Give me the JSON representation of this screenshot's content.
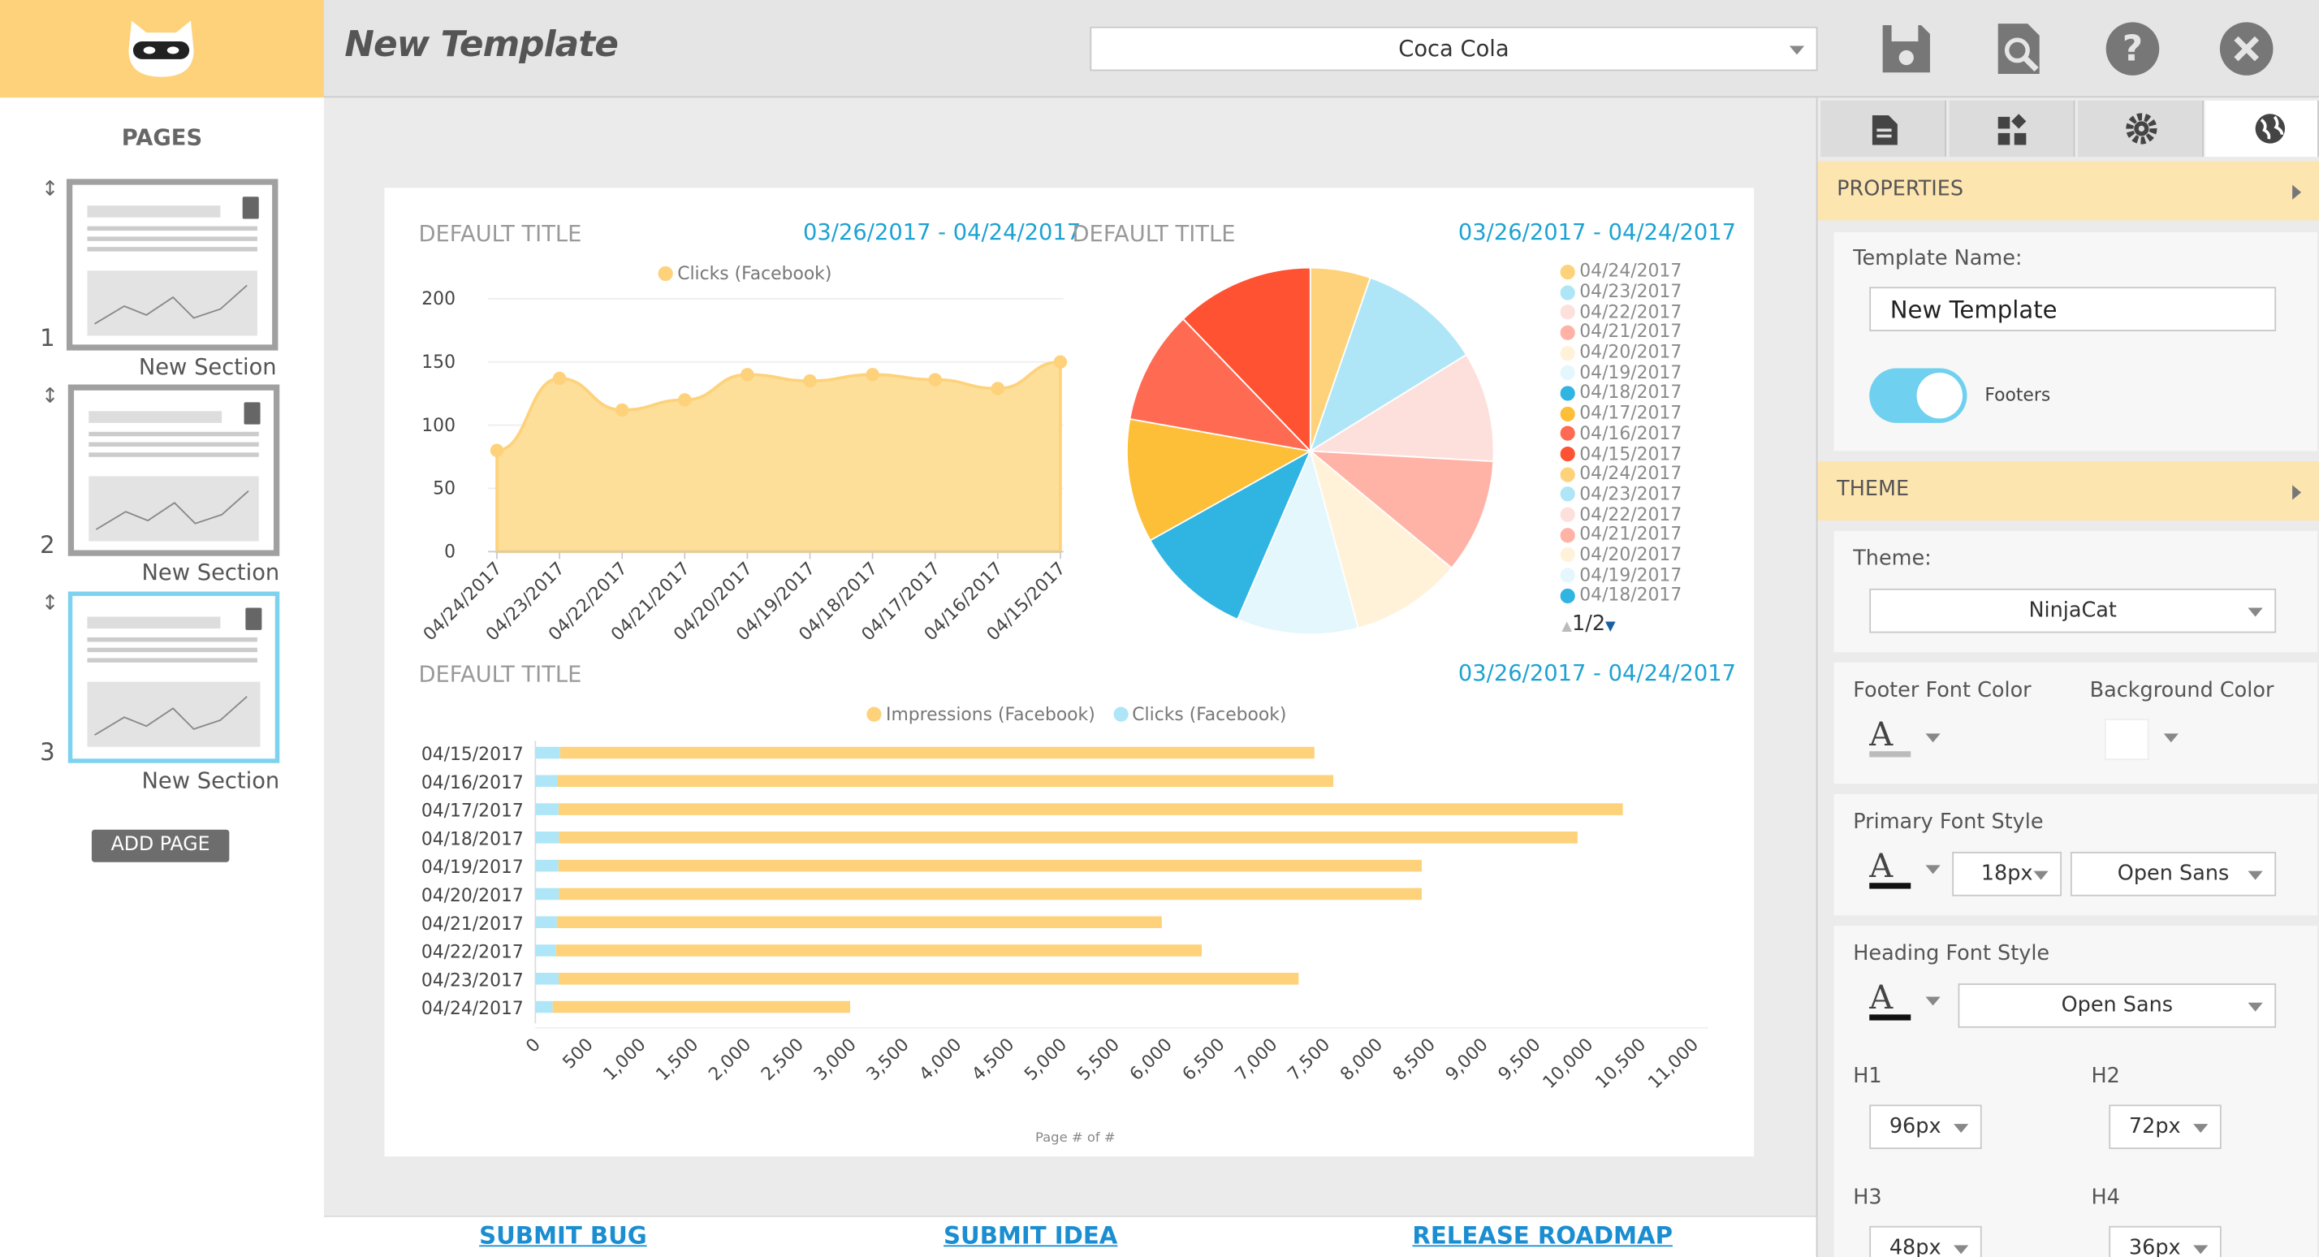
{
  "header": {
    "title": "New Template",
    "client": "Coca Cola"
  },
  "icons": {
    "logo": "ninjacat-logo-icon",
    "save": "save-icon",
    "preview": "preview-search-icon",
    "help": "help-icon",
    "close": "close-icon"
  },
  "pages": {
    "heading": "PAGES",
    "items": [
      {
        "num": "1",
        "label": "New Section"
      },
      {
        "num": "2",
        "label": "New Section"
      },
      {
        "num": "3",
        "label": "New Section"
      }
    ],
    "add_label": "ADD PAGE"
  },
  "widgets": {
    "line": {
      "title": "DEFAULT TITLE",
      "date": "03/26/2017 - 04/24/2017"
    },
    "pie": {
      "title": "DEFAULT TITLE",
      "date": "03/26/2017 - 04/24/2017",
      "pager": "1/2"
    },
    "bar": {
      "title": "DEFAULT TITLE",
      "date": "03/26/2017 - 04/24/2017"
    }
  },
  "footer_text": "Page # of #",
  "links": {
    "bug": "SUBMIT BUG",
    "idea": "SUBMIT IDEA",
    "roadmap": "RELEASE ROADMAP"
  },
  "panel": {
    "tabs": [
      "document-icon",
      "widgets-icon",
      "gear-icon",
      "globe-icon"
    ],
    "properties": "PROPERTIES",
    "template_name_label": "Template Name:",
    "template_name": "New Template",
    "footers_label": "Footers",
    "theme_header": "THEME",
    "theme_label": "Theme:",
    "theme": "NinjaCat",
    "footer_font_color": "Footer Font Color",
    "background_color": "Background Color",
    "primary_font_style": "Primary Font Style",
    "primary_size": "18px",
    "primary_font": "Open Sans",
    "heading_font_style": "Heading Font Style",
    "heading_font": "Open Sans",
    "h1_label": "H1",
    "h1": "96px",
    "h2_label": "H2",
    "h2": "72px",
    "h3_label": "H3",
    "h3": "48px",
    "h4_label": "H4",
    "h4": "36px"
  },
  "colors": {
    "accent": "#fdd27a",
    "link": "#1a8ed0",
    "date": "#1ea2d2",
    "toggle": "#6fd0f0"
  },
  "chart_data": [
    {
      "type": "area",
      "title": "DEFAULT TITLE",
      "legend": [
        "Clicks (Facebook)"
      ],
      "categories": [
        "04/24/2017",
        "04/23/2017",
        "04/22/2017",
        "04/21/2017",
        "04/20/2017",
        "04/19/2017",
        "04/18/2017",
        "04/17/2017",
        "04/16/2017",
        "04/15/2017"
      ],
      "series": [
        {
          "name": "Clicks (Facebook)",
          "values": [
            80,
            137,
            112,
            120,
            140,
            135,
            140,
            136,
            129,
            150
          ],
          "color": "#fdd27a"
        }
      ],
      "ylim": [
        0,
        200
      ],
      "yticks": [
        "0",
        "50",
        "100",
        "150",
        "200"
      ]
    },
    {
      "type": "pie",
      "title": "DEFAULT TITLE",
      "legend_position": "right",
      "slices": [
        {
          "label": "04/24/2017",
          "value": 5.3,
          "color": "#fdd27a"
        },
        {
          "label": "04/23/2017",
          "value": 10.9,
          "color": "#aee6f8"
        },
        {
          "label": "04/22/2017",
          "value": 9.7,
          "color": "#fde0dc"
        },
        {
          "label": "04/21/2017",
          "value": 10.1,
          "color": "#ffb3a6"
        },
        {
          "label": "04/20/2017",
          "value": 9.8,
          "color": "#fff2d9"
        },
        {
          "label": "04/19/2017",
          "value": 10.7,
          "color": "#e3f7fd"
        },
        {
          "label": "04/18/2017",
          "value": 10.4,
          "color": "#30b4e2"
        },
        {
          "label": "04/17/2017",
          "value": 10.9,
          "color": "#fdbf38"
        },
        {
          "label": "04/16/2017",
          "value": 10.0,
          "color": "#ff6b52"
        },
        {
          "label": "04/15/2017",
          "value": 12.2,
          "color": "#ff5233"
        }
      ],
      "legend": [
        {
          "label": "04/24/2017",
          "color": "#fdd27a"
        },
        {
          "label": "04/23/2017",
          "color": "#aee6f8"
        },
        {
          "label": "04/22/2017",
          "color": "#fde0dc"
        },
        {
          "label": "04/21/2017",
          "color": "#ffb3a6"
        },
        {
          "label": "04/20/2017",
          "color": "#fff2d9"
        },
        {
          "label": "04/19/2017",
          "color": "#e3f7fd"
        },
        {
          "label": "04/18/2017",
          "color": "#30b4e2"
        },
        {
          "label": "04/17/2017",
          "color": "#fdbf38"
        },
        {
          "label": "04/16/2017",
          "color": "#ff6b52"
        },
        {
          "label": "04/15/2017",
          "color": "#ff5233"
        },
        {
          "label": "04/24/2017",
          "color": "#fdd27a"
        },
        {
          "label": "04/23/2017",
          "color": "#aee6f8"
        },
        {
          "label": "04/22/2017",
          "color": "#fde0dc"
        },
        {
          "label": "04/21/2017",
          "color": "#ffb3a6"
        },
        {
          "label": "04/20/2017",
          "color": "#fff2d9"
        },
        {
          "label": "04/19/2017",
          "color": "#e3f7fd"
        },
        {
          "label": "04/18/2017",
          "color": "#30b4e2"
        }
      ]
    },
    {
      "type": "bar",
      "orientation": "horizontal",
      "title": "DEFAULT TITLE",
      "legend": [
        "Impressions (Facebook)",
        "Clicks (Facebook)"
      ],
      "categories": [
        "04/15/2017",
        "04/16/2017",
        "04/17/2017",
        "04/18/2017",
        "04/19/2017",
        "04/20/2017",
        "04/21/2017",
        "04/22/2017",
        "04/23/2017",
        "04/24/2017"
      ],
      "series": [
        {
          "name": "Impressions (Facebook)",
          "values": [
            7400,
            7580,
            10330,
            9900,
            8420,
            8420,
            5950,
            6330,
            7250,
            2990
          ],
          "color": "#fdd27a"
        },
        {
          "name": "Clicks (Facebook)",
          "values": [
            150,
            129,
            136,
            140,
            135,
            140,
            120,
            112,
            137,
            80
          ],
          "color": "#aee6f8"
        }
      ],
      "xlim": [
        0,
        11000
      ],
      "xticks": [
        "0",
        "500",
        "1,000",
        "1,500",
        "2,000",
        "2,500",
        "3,000",
        "3,500",
        "4,000",
        "4,500",
        "5,000",
        "5,500",
        "6,000",
        "6,500",
        "7,000",
        "7,500",
        "8,000",
        "8,500",
        "9,000",
        "9,500",
        "10,000",
        "10,500",
        "11,000"
      ]
    }
  ]
}
